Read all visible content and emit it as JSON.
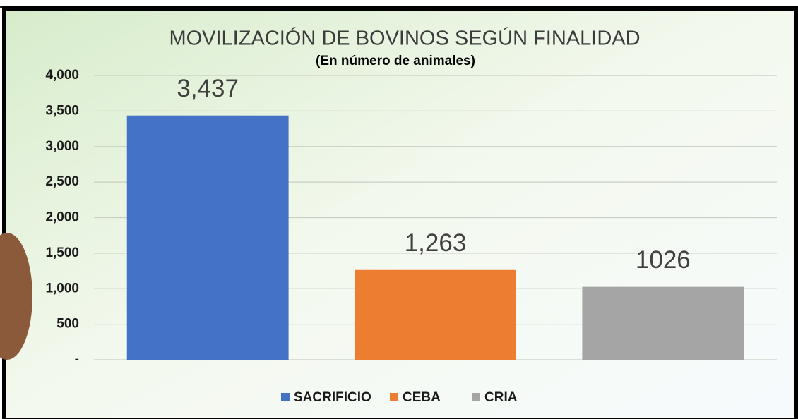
{
  "chart_data": {
    "type": "bar",
    "title": "MOVILIZACIÓN DE BOVINOS SEGÚN FINALIDAD",
    "subtitle": "(En número de animales)",
    "categories": [
      "SACRIFICIO",
      "CEBA",
      "CRIA"
    ],
    "values": [
      3437,
      1263,
      1026
    ],
    "value_labels": [
      "3,437",
      "1,263",
      "1026"
    ],
    "colors": [
      "#4472c4",
      "#ed7d31",
      "#a5a5a5"
    ],
    "ylim": [
      0,
      4000
    ],
    "yticks": [
      {
        "value": 0,
        "label": "-"
      },
      500,
      {
        "value": 1000,
        "label": "1,000"
      },
      {
        "value": 1500,
        "label": "1,500"
      },
      {
        "value": 2000,
        "label": "2,000"
      },
      {
        "value": 2500,
        "label": "2,500"
      },
      {
        "value": 3000,
        "label": "3,000"
      },
      {
        "value": 3500,
        "label": "3,500"
      },
      {
        "value": 4000,
        "label": "4,000"
      }
    ],
    "grid": true,
    "legend": "bottom"
  }
}
